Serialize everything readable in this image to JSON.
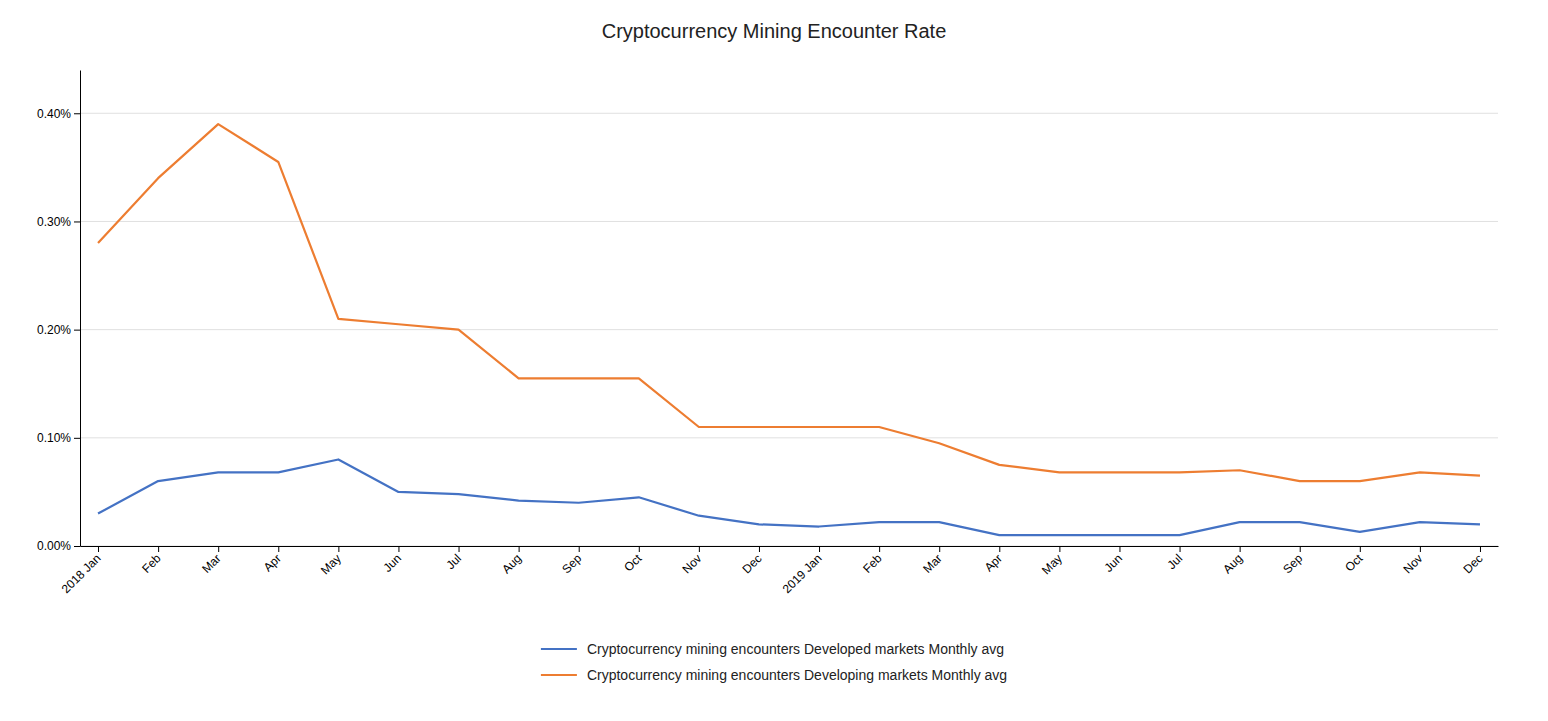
{
  "chart_data": {
    "type": "line",
    "title": "Cryptocurrency Mining Encounter Rate",
    "categories": [
      "2018 Jan",
      "Feb",
      "Mar",
      "Apr",
      "May",
      "Jun",
      "Jul",
      "Aug",
      "Sep",
      "Oct",
      "Nov",
      "Dec",
      "2019 Jan",
      "Feb",
      "Mar",
      "Apr",
      "May",
      "Jun",
      "Jul",
      "Aug",
      "Sep",
      "Oct",
      "Nov",
      "Dec"
    ],
    "series": [
      {
        "name": "Cryptocurrency mining encounters Developing markets Monthly avg",
        "color": "#ED7D31",
        "values": [
          0.0028,
          0.0034,
          0.0039,
          0.00355,
          0.0021,
          0.00205,
          0.002,
          0.00155,
          0.00155,
          0.00155,
          0.0011,
          0.0011,
          0.0011,
          0.0011,
          0.00095,
          0.00075,
          0.00068,
          0.00068,
          0.00068,
          0.0007,
          0.0006,
          0.0006,
          0.00068,
          0.00065
        ]
      },
      {
        "name": "Cryptocurrency mining encounters Developed markets Monthly avg",
        "color": "#4472C4",
        "values": [
          0.0003,
          0.0006,
          0.00068,
          0.00068,
          0.0008,
          0.0005,
          0.00048,
          0.00042,
          0.0004,
          0.00045,
          0.00028,
          0.0002,
          0.00018,
          0.00022,
          0.00022,
          0.0001,
          0.0001,
          0.0001,
          0.0001,
          0.00022,
          0.00022,
          0.00013,
          0.00022,
          0.0002
        ]
      }
    ],
    "ylim": [
      0,
      0.0044
    ],
    "yticks": [
      {
        "value": 0.0,
        "label": "0.00%"
      },
      {
        "value": 0.001,
        "label": "0.10%"
      },
      {
        "value": 0.002,
        "label": "0.20%"
      },
      {
        "value": 0.003,
        "label": "0.30%"
      },
      {
        "value": 0.004,
        "label": "0.40%"
      }
    ],
    "grid": true
  }
}
